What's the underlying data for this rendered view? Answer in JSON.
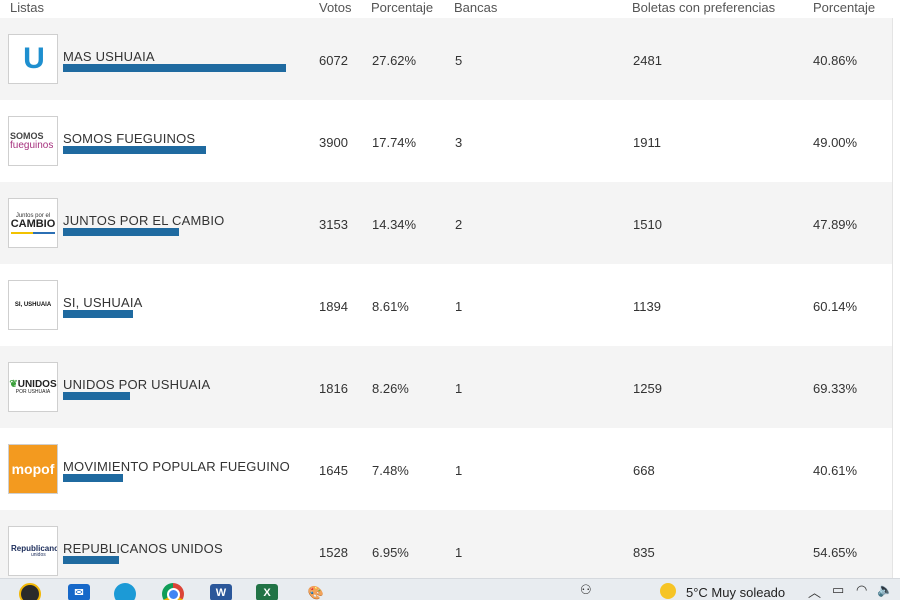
{
  "header": {
    "listas": "Listas",
    "votos": "Votos",
    "porcentaje": "Porcentaje",
    "bancas": "Bancas",
    "boletas": "Boletas con preferencias",
    "porcentaje2": "Porcentaje"
  },
  "rows": [
    {
      "name": "MAS USHUAIA",
      "votos": "6072",
      "porcentaje": "27.62%",
      "bancas": "5",
      "boletas": "2481",
      "porcentaje2": "40.86%",
      "bar_fraction": 0.2762,
      "logo": {
        "type": "mas",
        "text": "U"
      }
    },
    {
      "name": "SOMOS FUEGUINOS",
      "votos": "3900",
      "porcentaje": "17.74%",
      "bancas": "3",
      "boletas": "1911",
      "porcentaje2": "49.00%",
      "bar_fraction": 0.1774,
      "logo": {
        "type": "somos",
        "line1": "SOMOS",
        "line2": "fueguinos"
      }
    },
    {
      "name": "JUNTOS POR EL CAMBIO",
      "votos": "3153",
      "porcentaje": "14.34%",
      "bancas": "2",
      "boletas": "1510",
      "porcentaje2": "47.89%",
      "bar_fraction": 0.1434,
      "logo": {
        "type": "juntos",
        "line1": "Juntos por el",
        "line2": "CAMBIO"
      }
    },
    {
      "name": "SI, USHUAIA",
      "votos": "1894",
      "porcentaje": "8.61%",
      "bancas": "1",
      "boletas": "1139",
      "porcentaje2": "60.14%",
      "bar_fraction": 0.0861,
      "logo": {
        "type": "si",
        "text": "SI, USHUAIA"
      }
    },
    {
      "name": "UNIDOS POR USHUAIA",
      "votos": "1816",
      "porcentaje": "8.26%",
      "bancas": "1",
      "boletas": "1259",
      "porcentaje2": "69.33%",
      "bar_fraction": 0.0826,
      "logo": {
        "type": "unidos",
        "line1": "UNIDOS",
        "line2": "POR USHUAIA"
      }
    },
    {
      "name": "MOVIMIENTO POPULAR FUEGUINO",
      "votos": "1645",
      "porcentaje": "7.48%",
      "bancas": "1",
      "boletas": "668",
      "porcentaje2": "40.61%",
      "bar_fraction": 0.0748,
      "logo": {
        "type": "mopof",
        "text": "mopof"
      }
    },
    {
      "name": "REPUBLICANOS UNIDOS",
      "votos": "1528",
      "porcentaje": "6.95%",
      "bancas": "1",
      "boletas": "835",
      "porcentaje2": "54.65%",
      "bar_fraction": 0.0695,
      "logo": {
        "type": "repub",
        "line1": "Republicanos",
        "line2": "unidos"
      }
    }
  ],
  "taskbar": {
    "apps": [
      "speedometer-icon",
      "mail-icon",
      "edge-icon",
      "chrome-icon",
      "word-icon",
      "excel-icon",
      "paint-icon"
    ],
    "word_letter": "W",
    "excel_letter": "X",
    "weather": "5°C  Muy soleado"
  },
  "colors": {
    "bar": "#1f6aa0",
    "row_alt": "#f4f4f4",
    "mopof": "#f39a1f"
  }
}
